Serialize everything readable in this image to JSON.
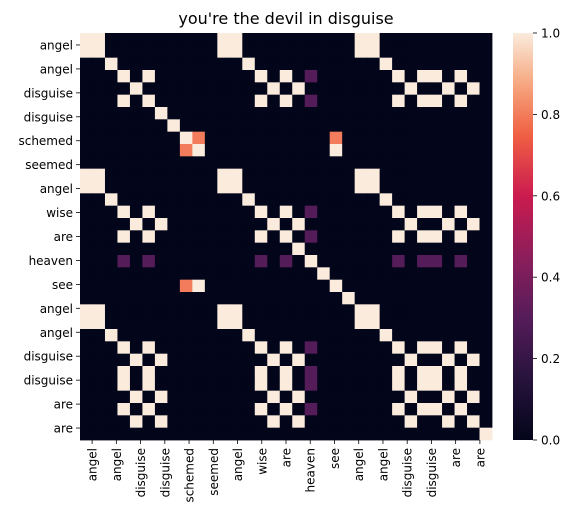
{
  "chart_data": {
    "type": "heatmap",
    "title": "you're the devil in disguise",
    "y_labels": [
      "angel",
      "angel",
      "disguise",
      "disguise",
      "schemed",
      "seemed",
      "angel",
      "wise",
      "are",
      "heaven",
      "see",
      "angel",
      "angel",
      "disguise",
      "disguise",
      "are",
      "are"
    ],
    "x_labels": [
      "angel",
      "angel",
      "disguise",
      "disguise",
      "schemed",
      "seemed",
      "angel",
      "wise",
      "are",
      "heaven",
      "see",
      "angel",
      "angel",
      "disguise",
      "disguise",
      "are",
      "are"
    ],
    "tokens": [
      "angel",
      "angel",
      "",
      "disguise",
      "",
      "disguise",
      "",
      "schemed",
      "",
      "seemed",
      "",
      "angel",
      "",
      "wise",
      "",
      "are",
      "",
      "heaven",
      "",
      "see",
      "",
      "angel",
      "",
      "angel",
      "",
      "disguise",
      "",
      "disguise",
      "",
      "are",
      "",
      "are",
      ""
    ],
    "values": [
      [
        1,
        1,
        0,
        0,
        0,
        0,
        0,
        0,
        0,
        0,
        0,
        1,
        1,
        0,
        0,
        0,
        0,
        0,
        0,
        0,
        0,
        0,
        1,
        1,
        0,
        0,
        0,
        0,
        0,
        0,
        0,
        0,
        0
      ],
      [
        1,
        1,
        0,
        0,
        0,
        0,
        0,
        0,
        0,
        0,
        0,
        1,
        1,
        0,
        0,
        0,
        0,
        0,
        0,
        0,
        0,
        0,
        1,
        1,
        0,
        0,
        0,
        0,
        0,
        0,
        0,
        0,
        0
      ],
      [
        0,
        0,
        1,
        0,
        0,
        0,
        0,
        0,
        0,
        0,
        0,
        0,
        0,
        1,
        0,
        0,
        0,
        0,
        0,
        0,
        0,
        0,
        0,
        0,
        1,
        0,
        0,
        0,
        0,
        0,
        0,
        0,
        0
      ],
      [
        0,
        0,
        0,
        1,
        0,
        1,
        0,
        0,
        0,
        0,
        0,
        0,
        0,
        0,
        1,
        0,
        1,
        0,
        0.3,
        0,
        0,
        0,
        0,
        0,
        0,
        1,
        0,
        1,
        1,
        0,
        1,
        0,
        0
      ],
      [
        0,
        0,
        0,
        0,
        1,
        0,
        0,
        0,
        0,
        0,
        0,
        0,
        0,
        0,
        0,
        1,
        0,
        1,
        0,
        0,
        0,
        0,
        0,
        0,
        0,
        0,
        1,
        0,
        0,
        1,
        0,
        1,
        0
      ],
      [
        0,
        0,
        0,
        1,
        0,
        1,
        0,
        0,
        0,
        0,
        0,
        0,
        0,
        0,
        1,
        0,
        1,
        0,
        0.3,
        0,
        0,
        0,
        0,
        0,
        0,
        1,
        0,
        1,
        1,
        0,
        1,
        0,
        0
      ],
      [
        0,
        0,
        0,
        0,
        0,
        0,
        1,
        0,
        0,
        0,
        0,
        0,
        0,
        0,
        0,
        0,
        0,
        0,
        0,
        0,
        0,
        0,
        0,
        0,
        0,
        0,
        0,
        0,
        0,
        0,
        0,
        0,
        0
      ],
      [
        0,
        0,
        0,
        0,
        0,
        0,
        0,
        1,
        0,
        0,
        0,
        0,
        0,
        0,
        0,
        0,
        0,
        0,
        0,
        0,
        0,
        0,
        0,
        0,
        0,
        0,
        0,
        0,
        0,
        0,
        0,
        0,
        0
      ],
      [
        0,
        0,
        0,
        0,
        0,
        0,
        0,
        0,
        1,
        0.8,
        0,
        0,
        0,
        0,
        0,
        0,
        0,
        0,
        0,
        0,
        0.8,
        0,
        0,
        0,
        0,
        0,
        0,
        0,
        0,
        0,
        0,
        0,
        0
      ],
      [
        0,
        0,
        0,
        0,
        0,
        0,
        0,
        0,
        0.8,
        1,
        0,
        0,
        0,
        0,
        0,
        0,
        0,
        0,
        0,
        0,
        1,
        0,
        0,
        0,
        0,
        0,
        0,
        0,
        0,
        0,
        0,
        0,
        0
      ],
      [
        0,
        0,
        0,
        0,
        0,
        0,
        0,
        0,
        0,
        0,
        0,
        0,
        0,
        0,
        0,
        0,
        0,
        0,
        0,
        0,
        0,
        0,
        0,
        0,
        0,
        0,
        0,
        0,
        0,
        0,
        0,
        0,
        0
      ],
      [
        1,
        1,
        0,
        0,
        0,
        0,
        0,
        0,
        0,
        0,
        0,
        1,
        1,
        0,
        0,
        0,
        0,
        0,
        0,
        0,
        0,
        0,
        1,
        1,
        0,
        0,
        0,
        0,
        0,
        0,
        0,
        0,
        0
      ],
      [
        1,
        1,
        0,
        0,
        0,
        0,
        0,
        0,
        0,
        0,
        0,
        1,
        1,
        0,
        0,
        0,
        0,
        0,
        0,
        0,
        0,
        0,
        1,
        1,
        0,
        0,
        0,
        0,
        0,
        0,
        0,
        0,
        0
      ],
      [
        0,
        0,
        1,
        0,
        0,
        0,
        0,
        0,
        0,
        0,
        0,
        0,
        0,
        1,
        0,
        0,
        0,
        0,
        0,
        0,
        0,
        0,
        0,
        0,
        1,
        0,
        0,
        0,
        0,
        0,
        0,
        0,
        0
      ],
      [
        0,
        0,
        0,
        1,
        0,
        1,
        0,
        0,
        0,
        0,
        0,
        0,
        0,
        0,
        1,
        0,
        1,
        0,
        0.3,
        0,
        0,
        0,
        0,
        0,
        0,
        1,
        0,
        1,
        1,
        0,
        1,
        0,
        0
      ],
      [
        0,
        0,
        0,
        0,
        1,
        0,
        1,
        0,
        0,
        0,
        0,
        0,
        0,
        0,
        0,
        1,
        0,
        1,
        0,
        0,
        0,
        0,
        0,
        0,
        0,
        0,
        1,
        0,
        0,
        1,
        0,
        1,
        0
      ],
      [
        0,
        0,
        0,
        1,
        0,
        1,
        0,
        0,
        0,
        0,
        0,
        0,
        0,
        0,
        1,
        0,
        1,
        0,
        0.3,
        0,
        0,
        0,
        0,
        0,
        0,
        1,
        0,
        1,
        1,
        0,
        1,
        0,
        0
      ],
      [
        0,
        0,
        0,
        0,
        0,
        0,
        0,
        0,
        0,
        0,
        0,
        0,
        0,
        0,
        0,
        0,
        0,
        1,
        0,
        0,
        0,
        0,
        0,
        0,
        0,
        0,
        0,
        0,
        0,
        0,
        0,
        0,
        0
      ],
      [
        0,
        0,
        0,
        0.3,
        0,
        0.3,
        0,
        0,
        0,
        0,
        0,
        0,
        0,
        0,
        0.3,
        0,
        0.3,
        0,
        1,
        0,
        0,
        0,
        0,
        0,
        0,
        0.3,
        0,
        0.3,
        0.3,
        0,
        0.3,
        0,
        0
      ],
      [
        0,
        0,
        0,
        0,
        0,
        0,
        0,
        0,
        0,
        0,
        0,
        0,
        0,
        0,
        0,
        0,
        0,
        0,
        0,
        1,
        0,
        0,
        0,
        0,
        0,
        0,
        0,
        0,
        0,
        0,
        0,
        0,
        0
      ],
      [
        0,
        0,
        0,
        0,
        0,
        0,
        0,
        0,
        0.8,
        1,
        0,
        0,
        0,
        0,
        0,
        0,
        0,
        0,
        0,
        0,
        1,
        0,
        0,
        0,
        0,
        0,
        0,
        0,
        0,
        0,
        0,
        0,
        0
      ],
      [
        0,
        0,
        0,
        0,
        0,
        0,
        0,
        0,
        0,
        0,
        0,
        0,
        0,
        0,
        0,
        0,
        0,
        0,
        0,
        0,
        0,
        1,
        0,
        0,
        0,
        0,
        0,
        0,
        0,
        0,
        0,
        0,
        0
      ],
      [
        1,
        1,
        0,
        0,
        0,
        0,
        0,
        0,
        0,
        0,
        0,
        1,
        1,
        0,
        0,
        0,
        0,
        0,
        0,
        0,
        0,
        0,
        1,
        1,
        0,
        0,
        0,
        0,
        0,
        0,
        0,
        0,
        0
      ],
      [
        1,
        1,
        0,
        0,
        0,
        0,
        0,
        0,
        0,
        0,
        0,
        1,
        1,
        0,
        0,
        0,
        0,
        0,
        0,
        0,
        0,
        0,
        1,
        1,
        0,
        0,
        0,
        0,
        0,
        0,
        0,
        0,
        0
      ],
      [
        0,
        0,
        1,
        0,
        0,
        0,
        0,
        0,
        0,
        0,
        0,
        0,
        0,
        1,
        0,
        0,
        0,
        0,
        0,
        0,
        0,
        0,
        0,
        0,
        1,
        0,
        0,
        0,
        0,
        0,
        0,
        0,
        0
      ],
      [
        0,
        0,
        0,
        1,
        0,
        1,
        0,
        0,
        0,
        0,
        0,
        0,
        0,
        0,
        1,
        0,
        1,
        0,
        0.3,
        0,
        0,
        0,
        0,
        0,
        0,
        1,
        0,
        1,
        1,
        0,
        1,
        0,
        0
      ],
      [
        0,
        0,
        0,
        0,
        1,
        0,
        1,
        0,
        0,
        0,
        0,
        0,
        0,
        0,
        0,
        1,
        0,
        1,
        0,
        0,
        0,
        0,
        0,
        0,
        0,
        0,
        1,
        0,
        0,
        1,
        0,
        1,
        0
      ],
      [
        0,
        0,
        0,
        1,
        0,
        1,
        0,
        0,
        0,
        0,
        0,
        0,
        0,
        0,
        1,
        0,
        1,
        0,
        0.3,
        0,
        0,
        0,
        0,
        0,
        0,
        1,
        0,
        1,
        1,
        0,
        1,
        0,
        0
      ],
      [
        0,
        0,
        0,
        1,
        0,
        1,
        0,
        0,
        0,
        0,
        0,
        0,
        0,
        0,
        1,
        0,
        1,
        0,
        0.3,
        0,
        0,
        0,
        0,
        0,
        0,
        1,
        0,
        1,
        1,
        0,
        1,
        0,
        0
      ],
      [
        0,
        0,
        0,
        0,
        1,
        0,
        1,
        0,
        0,
        0,
        0,
        0,
        0,
        0,
        0,
        1,
        0,
        1,
        0,
        0,
        0,
        0,
        0,
        0,
        0,
        0,
        1,
        0,
        0,
        1,
        0,
        1,
        0
      ],
      [
        0,
        0,
        0,
        1,
        0,
        1,
        0,
        0,
        0,
        0,
        0,
        0,
        0,
        0,
        1,
        0,
        1,
        0,
        0.3,
        0,
        0,
        0,
        0,
        0,
        0,
        1,
        0,
        1,
        1,
        0,
        1,
        0,
        0
      ],
      [
        0,
        0,
        0,
        0,
        1,
        0,
        1,
        0,
        0,
        0,
        0,
        0,
        0,
        0,
        0,
        1,
        0,
        1,
        0,
        0,
        0,
        0,
        0,
        0,
        0,
        0,
        1,
        0,
        0,
        1,
        0,
        1,
        0
      ],
      [
        0,
        0,
        0,
        0,
        0,
        0,
        0,
        0,
        0,
        0,
        0,
        0,
        0,
        0,
        0,
        0,
        0,
        0,
        0,
        0,
        0,
        0,
        0,
        0,
        0,
        0,
        0,
        0,
        0,
        0,
        0,
        0,
        1
      ]
    ],
    "colorbar": {
      "vmin": 0,
      "vmax": 1,
      "ticks": [
        "0.0",
        "0.2",
        "0.4",
        "0.6",
        "0.8",
        "1.0"
      ]
    },
    "colormap": "rocket",
    "grid": false,
    "legend": "colorbar-right"
  }
}
